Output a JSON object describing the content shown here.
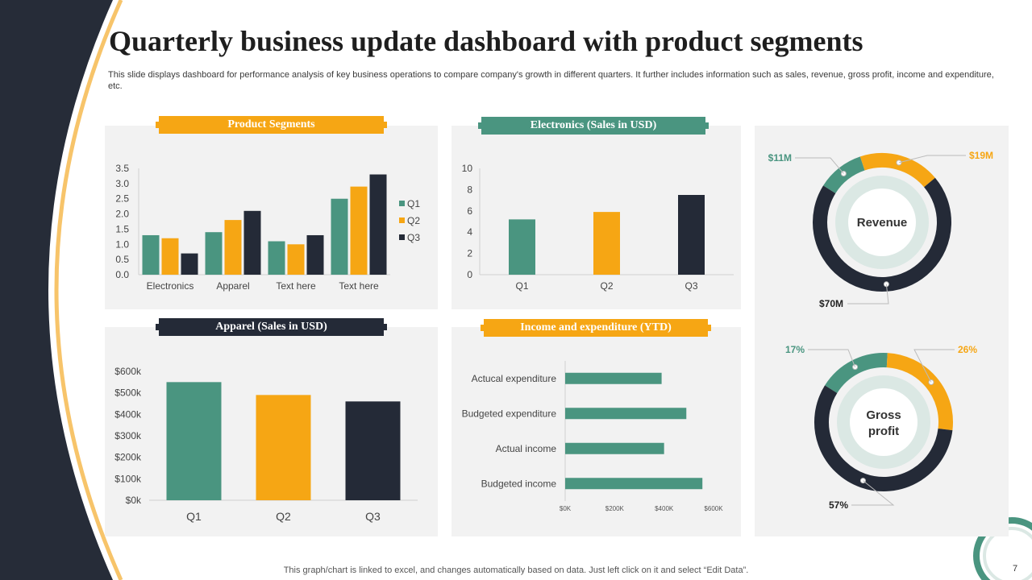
{
  "slide": {
    "title": "Quarterly business update dashboard with product segments",
    "subtitle": "This slide displays dashboard for performance analysis of key business operations to compare company's growth in different quarters. It further includes information such as sales, revenue, gross profit, income and expenditure, etc.",
    "footer": "This graph/chart is linked to excel,  and changes automatically based on data. Just left click on it and select “Edit Data”.",
    "page_number": "7"
  },
  "colors": {
    "green": "#4a9580",
    "orange": "#f6a614",
    "dark": "#242a37",
    "ring_inner": "#dbe8e4",
    "panel": "#f2f2f2"
  },
  "chart_data": [
    {
      "id": "product",
      "type": "bar",
      "title": "Product Segments",
      "categories": [
        "Electronics",
        "Apparel",
        "Text here",
        "Text here"
      ],
      "series": [
        {
          "name": "Q1",
          "values": [
            1.3,
            1.4,
            1.1,
            2.5
          ]
        },
        {
          "name": "Q2",
          "values": [
            1.2,
            1.8,
            1.0,
            2.9
          ]
        },
        {
          "name": "Q3",
          "values": [
            0.7,
            2.1,
            1.3,
            3.3
          ]
        }
      ],
      "ylim": [
        0,
        3.5
      ],
      "yticks": [
        "0.0",
        "0.5",
        "1.0",
        "1.5",
        "2.0",
        "2.5",
        "3.0",
        "3.5"
      ],
      "legend": "right"
    },
    {
      "id": "electronics",
      "type": "bar",
      "title": "Electronics (Sales in USD)",
      "categories": [
        "Q1",
        "Q2",
        "Q3"
      ],
      "values": [
        5.2,
        5.9,
        7.5
      ],
      "ylim": [
        0,
        10
      ],
      "yticks": [
        "0",
        "2",
        "4",
        "6",
        "8",
        "10"
      ]
    },
    {
      "id": "apparel",
      "type": "bar",
      "title": "Apparel (Sales in USD)",
      "categories": [
        "Q1",
        "Q2",
        "Q3"
      ],
      "values": [
        550000,
        490000,
        460000
      ],
      "ylim": [
        0,
        600000
      ],
      "yticks": [
        "$0k",
        "$100k",
        "$200k",
        "$300k",
        "$400k",
        "$500k",
        "$600k"
      ]
    },
    {
      "id": "income",
      "type": "bar",
      "orientation": "horizontal",
      "title": "Income and expenditure (YTD)",
      "categories": [
        "Actucal expenditure",
        "Budgeted expenditure",
        "Actual income",
        "Budgeted income"
      ],
      "values": [
        390000,
        490000,
        400000,
        555000
      ],
      "xlim": [
        0,
        600000
      ],
      "xticks": [
        "$0K",
        "$200K",
        "$400K",
        "$600K"
      ]
    },
    {
      "id": "revenue",
      "type": "pie",
      "center_label": "Revenue",
      "segments": [
        {
          "label": "$11M",
          "value": 11
        },
        {
          "label": "$19M",
          "value": 19
        },
        {
          "label": "$70M",
          "value": 70
        }
      ]
    },
    {
      "id": "gross",
      "type": "pie",
      "center_label": "Gross profit",
      "segments": [
        {
          "label": "17%",
          "value": 17
        },
        {
          "label": "26%",
          "value": 26
        },
        {
          "label": "57%",
          "value": 57
        }
      ]
    }
  ]
}
